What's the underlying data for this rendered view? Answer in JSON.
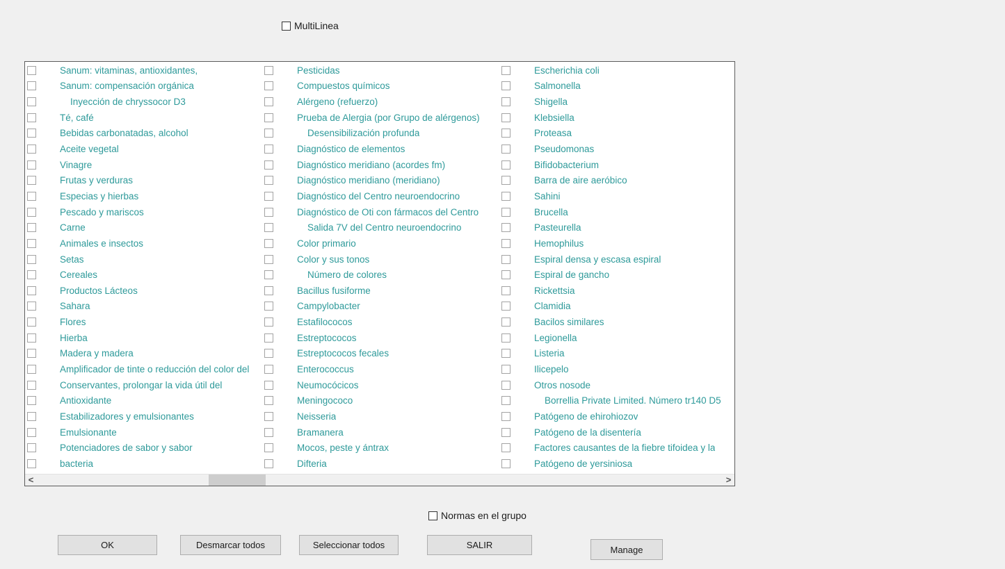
{
  "colors": {
    "item_text": "#2e9a9a",
    "page_background": "#f0f0f0",
    "button_background": "#e1e1e1"
  },
  "multilinea": {
    "label": "MultiLinea",
    "checked": false
  },
  "normas": {
    "label": "Normas en el grupo",
    "checked": false
  },
  "scrollbar": {
    "left_arrow": "<",
    "right_arrow": ">"
  },
  "buttons": {
    "ok": "OK",
    "deselect_all": "Desmarcar todos",
    "select_all": "Seleccionar todos",
    "exit": "SALIR",
    "manage": "Manage"
  },
  "list": {
    "columns": [
      {
        "items": [
          {
            "label": "Sanum: vitaminas, antioxidantes,",
            "indent": false,
            "checked": false
          },
          {
            "label": "Sanum: compensación orgánica",
            "indent": false,
            "checked": false
          },
          {
            "label": "Inyección de chryssocor D3",
            "indent": true,
            "checked": false
          },
          {
            "label": "Té, café",
            "indent": false,
            "checked": false
          },
          {
            "label": "Bebidas carbonatadas, alcohol",
            "indent": false,
            "checked": false
          },
          {
            "label": "Aceite vegetal",
            "indent": false,
            "checked": false
          },
          {
            "label": "Vinagre",
            "indent": false,
            "checked": false
          },
          {
            "label": "Frutas y verduras",
            "indent": false,
            "checked": false
          },
          {
            "label": "Especias y hierbas",
            "indent": false,
            "checked": false
          },
          {
            "label": "Pescado y mariscos",
            "indent": false,
            "checked": false
          },
          {
            "label": "Carne",
            "indent": false,
            "checked": false
          },
          {
            "label": "Animales e insectos",
            "indent": false,
            "checked": false
          },
          {
            "label": "Setas",
            "indent": false,
            "checked": false
          },
          {
            "label": "Cereales",
            "indent": false,
            "checked": false
          },
          {
            "label": "Productos Lácteos",
            "indent": false,
            "checked": false
          },
          {
            "label": "Sahara",
            "indent": false,
            "checked": false
          },
          {
            "label": "Flores",
            "indent": false,
            "checked": false
          },
          {
            "label": "Hierba",
            "indent": false,
            "checked": false
          },
          {
            "label": "Madera y madera",
            "indent": false,
            "checked": false
          },
          {
            "label": "Amplificador de tinte o reducción del color del",
            "indent": false,
            "checked": false
          },
          {
            "label": "Conservantes, prolongar la vida útil del",
            "indent": false,
            "checked": false
          },
          {
            "label": "Antioxidante",
            "indent": false,
            "checked": false
          },
          {
            "label": "Estabilizadores y emulsionantes",
            "indent": false,
            "checked": false
          },
          {
            "label": "Emulsionante",
            "indent": false,
            "checked": false
          },
          {
            "label": "Potenciadores de sabor y sabor",
            "indent": false,
            "checked": false
          },
          {
            "label": "bacteria",
            "indent": false,
            "checked": false
          }
        ]
      },
      {
        "items": [
          {
            "label": "Pesticidas",
            "indent": false,
            "checked": false
          },
          {
            "label": "Compuestos químicos",
            "indent": false,
            "checked": false
          },
          {
            "label": "Alérgeno (refuerzo)",
            "indent": false,
            "checked": false
          },
          {
            "label": "Prueba de Alergia (por Grupo de alérgenos)",
            "indent": false,
            "checked": false
          },
          {
            "label": "Desensibilización profunda",
            "indent": true,
            "checked": false
          },
          {
            "label": "Diagnóstico de elementos",
            "indent": false,
            "checked": false
          },
          {
            "label": "Diagnóstico meridiano (acordes fm)",
            "indent": false,
            "checked": false
          },
          {
            "label": "Diagnóstico meridiano (meridiano)",
            "indent": false,
            "checked": false
          },
          {
            "label": "Diagnóstico del Centro neuroendocrino",
            "indent": false,
            "checked": false
          },
          {
            "label": "Diagnóstico de Oti con fármacos del Centro",
            "indent": false,
            "checked": false
          },
          {
            "label": "Salida 7V del Centro neuroendocrino",
            "indent": true,
            "checked": false
          },
          {
            "label": "Color primario",
            "indent": false,
            "checked": false
          },
          {
            "label": "Color y sus tonos",
            "indent": false,
            "checked": false
          },
          {
            "label": "Número de colores",
            "indent": true,
            "checked": false
          },
          {
            "label": "Bacillus fusiforme",
            "indent": false,
            "checked": false
          },
          {
            "label": "Campylobacter",
            "indent": false,
            "checked": false
          },
          {
            "label": "Estafilococos",
            "indent": false,
            "checked": false
          },
          {
            "label": "Estreptococos",
            "indent": false,
            "checked": false
          },
          {
            "label": "Estreptococos fecales",
            "indent": false,
            "checked": false
          },
          {
            "label": "Enterococcus",
            "indent": false,
            "checked": false
          },
          {
            "label": "Neumocócicos",
            "indent": false,
            "checked": false
          },
          {
            "label": "Meningococo",
            "indent": false,
            "checked": false
          },
          {
            "label": "Neisseria",
            "indent": false,
            "checked": false
          },
          {
            "label": "Bramanera",
            "indent": false,
            "checked": false
          },
          {
            "label": "Mocos, peste y ántrax",
            "indent": false,
            "checked": false
          },
          {
            "label": "Difteria",
            "indent": false,
            "checked": false
          }
        ]
      },
      {
        "items": [
          {
            "label": "Escherichia coli",
            "indent": false,
            "checked": false
          },
          {
            "label": "Salmonella",
            "indent": false,
            "checked": false
          },
          {
            "label": "Shigella",
            "indent": false,
            "checked": false
          },
          {
            "label": "Klebsiella",
            "indent": false,
            "checked": false
          },
          {
            "label": "Proteasa",
            "indent": false,
            "checked": false
          },
          {
            "label": "Pseudomonas",
            "indent": false,
            "checked": false
          },
          {
            "label": "Bifidobacterium",
            "indent": false,
            "checked": false
          },
          {
            "label": "Barra de aire aeróbico",
            "indent": false,
            "checked": false
          },
          {
            "label": "Sahini",
            "indent": false,
            "checked": false
          },
          {
            "label": "Brucella",
            "indent": false,
            "checked": false
          },
          {
            "label": "Pasteurella",
            "indent": false,
            "checked": false
          },
          {
            "label": "Hemophilus",
            "indent": false,
            "checked": false
          },
          {
            "label": "Espiral densa y escasa espiral",
            "indent": false,
            "checked": false
          },
          {
            "label": "Espiral de gancho",
            "indent": false,
            "checked": false
          },
          {
            "label": "Rickettsia",
            "indent": false,
            "checked": false
          },
          {
            "label": "Clamidia",
            "indent": false,
            "checked": false
          },
          {
            "label": "Bacilos similares",
            "indent": false,
            "checked": false
          },
          {
            "label": "Legionella",
            "indent": false,
            "checked": false
          },
          {
            "label": "Listeria",
            "indent": false,
            "checked": false
          },
          {
            "label": "Ilicepelo",
            "indent": false,
            "checked": false
          },
          {
            "label": "Otros nosode",
            "indent": false,
            "checked": false
          },
          {
            "label": "Borrellia Private Limited. Número tr140 D5",
            "indent": true,
            "checked": false
          },
          {
            "label": "Patógeno de ehirohiozov",
            "indent": false,
            "checked": false
          },
          {
            "label": "Patógeno de la disentería",
            "indent": false,
            "checked": false
          },
          {
            "label": "Factores causantes de la fiebre tifoidea y la",
            "indent": false,
            "checked": false
          },
          {
            "label": "Patógeno de yersiniosa",
            "indent": false,
            "checked": false
          }
        ]
      }
    ]
  }
}
